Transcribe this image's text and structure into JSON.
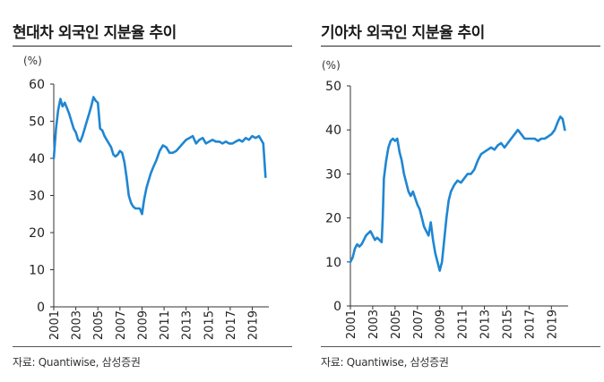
{
  "chart_data": [
    {
      "type": "line",
      "title": "현대차 외국인 지분율 추이",
      "unit_label": "(%)",
      "source": "자료: Quantiwise, 삼성증권",
      "ylim": [
        0,
        60
      ],
      "yticks": [
        0,
        10,
        20,
        30,
        40,
        50,
        60
      ],
      "xlim": [
        2001,
        2020.5
      ],
      "xticks": [
        "2001",
        "2003",
        "2005",
        "2007",
        "2009",
        "2011",
        "2013",
        "2015",
        "2017",
        "2019"
      ],
      "color": "#1f86d3",
      "grid": false,
      "series": [
        {
          "x": [
            2001.0,
            2001.2,
            2001.4,
            2001.6,
            2001.8,
            2002.0,
            2002.2,
            2002.4,
            2002.6,
            2002.8,
            2003.0,
            2003.2,
            2003.4,
            2003.6,
            2003.8,
            2004.0,
            2004.2,
            2004.4,
            2004.6,
            2004.8,
            2005.0,
            2005.2,
            2005.4,
            2005.6,
            2005.8,
            2006.0,
            2006.2,
            2006.4,
            2006.6,
            2006.8,
            2007.0,
            2007.2,
            2007.4,
            2007.6,
            2007.8,
            2008.0,
            2008.2,
            2008.4,
            2008.6,
            2008.8,
            2009.0,
            2009.1,
            2009.2,
            2009.4,
            2009.6,
            2009.8,
            2010.0,
            2010.3,
            2010.6,
            2010.9,
            2011.2,
            2011.5,
            2011.8,
            2012.1,
            2012.4,
            2012.7,
            2013.0,
            2013.3,
            2013.6,
            2013.9,
            2014.2,
            2014.5,
            2014.8,
            2015.1,
            2015.4,
            2015.7,
            2016.0,
            2016.3,
            2016.6,
            2016.9,
            2017.2,
            2017.5,
            2017.8,
            2018.1,
            2018.4,
            2018.7,
            2019.0,
            2019.3,
            2019.6,
            2019.8,
            2020.0,
            2020.2
          ],
          "y": [
            40,
            48,
            53,
            56,
            54,
            55,
            53.5,
            52,
            50,
            48,
            47,
            45,
            44.5,
            46,
            48,
            50,
            52,
            54,
            56.5,
            55.5,
            55,
            48,
            47.5,
            46,
            45,
            44,
            43,
            41,
            40.5,
            41,
            42,
            41.5,
            39,
            35,
            30,
            28,
            27,
            26.5,
            26.5,
            26.5,
            25,
            27,
            29,
            32,
            34,
            36,
            37.5,
            39.5,
            42,
            43.5,
            43,
            41.5,
            41.5,
            42,
            43,
            44,
            45,
            45.5,
            46,
            44,
            45,
            45.5,
            44,
            44.5,
            45,
            44.5,
            44.5,
            44,
            44.5,
            44,
            44,
            44.5,
            45,
            44.5,
            45.5,
            45,
            46,
            45.5,
            46,
            45,
            44,
            35
          ]
        }
      ]
    },
    {
      "type": "line",
      "title": "기아차 외국인 지분율 추이",
      "unit_label": "(%)",
      "source": "자료: Quantiwise, 삼성증권",
      "ylim": [
        0,
        50
      ],
      "yticks": [
        0,
        10,
        20,
        30,
        40,
        50
      ],
      "xlim": [
        2001,
        2020.5
      ],
      "xticks": [
        "2001",
        "2003",
        "2005",
        "2007",
        "2009",
        "2011",
        "2013",
        "2015",
        "2017",
        "2019"
      ],
      "color": "#1f86d3",
      "grid": false,
      "series": [
        {
          "x": [
            2001.0,
            2001.2,
            2001.4,
            2001.6,
            2001.8,
            2002.0,
            2002.2,
            2002.4,
            2002.6,
            2002.8,
            2003.0,
            2003.2,
            2003.4,
            2003.6,
            2003.8,
            2003.9,
            2004.0,
            2004.2,
            2004.4,
            2004.6,
            2004.8,
            2005.0,
            2005.2,
            2005.4,
            2005.6,
            2005.8,
            2006.0,
            2006.2,
            2006.4,
            2006.6,
            2006.8,
            2007.0,
            2007.2,
            2007.4,
            2007.6,
            2007.8,
            2008.0,
            2008.2,
            2008.4,
            2008.6,
            2008.8,
            2009.0,
            2009.2,
            2009.4,
            2009.6,
            2009.8,
            2010.0,
            2010.3,
            2010.6,
            2010.9,
            2011.2,
            2011.5,
            2011.8,
            2012.1,
            2012.4,
            2012.7,
            2013.0,
            2013.3,
            2013.6,
            2013.9,
            2014.2,
            2014.5,
            2014.8,
            2015.1,
            2015.4,
            2015.7,
            2016.0,
            2016.3,
            2016.6,
            2016.9,
            2017.2,
            2017.5,
            2017.8,
            2018.1,
            2018.4,
            2018.7,
            2019.0,
            2019.3,
            2019.6,
            2019.8,
            2020.0,
            2020.2
          ],
          "y": [
            10,
            11,
            13,
            14,
            13.5,
            14,
            15,
            16,
            16.5,
            17,
            16,
            15,
            15.5,
            15,
            14.5,
            20,
            29,
            33,
            36,
            37.5,
            38,
            37.5,
            38,
            35,
            33,
            30,
            28,
            26,
            25,
            26,
            24.5,
            23,
            22,
            20,
            18,
            17,
            16,
            19,
            15,
            12,
            10,
            8,
            10,
            15,
            20,
            24,
            26,
            27.5,
            28.5,
            28,
            29,
            30,
            30,
            31,
            33,
            34.5,
            35,
            35.5,
            36,
            35.5,
            36.5,
            37,
            36,
            37,
            38,
            39,
            40,
            39,
            38,
            38,
            38,
            38,
            37.5,
            38,
            38,
            38.5,
            39,
            40,
            42,
            43,
            42.5,
            40
          ]
        }
      ]
    }
  ]
}
